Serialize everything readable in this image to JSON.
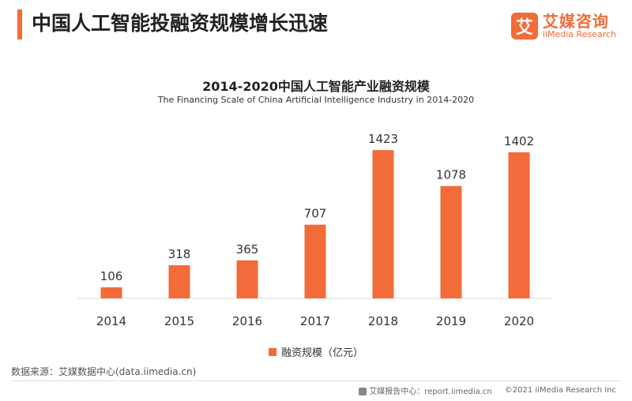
{
  "header": {
    "title": "中国人工智能投融资规模增长迅速",
    "brand_icon_glyph": "艾",
    "brand_name": "艾媒咨询",
    "brand_sub": "iiMedia Research"
  },
  "colors": {
    "accent": "#f26b38",
    "bar": "#f26b38"
  },
  "chart_data": {
    "type": "bar",
    "title": "2014-2020中国人工智能产业融资规模",
    "subtitle": "The Financing Scale of China Artificial Intelligence Industry  in 2014-2020",
    "categories": [
      "2014",
      "2015",
      "2016",
      "2017",
      "2018",
      "2019",
      "2020"
    ],
    "series": [
      {
        "name": "融资规模（亿元）",
        "values": [
          106,
          318,
          365,
          707,
          1423,
          1078,
          1402
        ]
      }
    ],
    "xlabel": "",
    "ylabel": "",
    "ylim": [
      0,
      1500
    ],
    "grid": false,
    "legend": "bottom-center",
    "data_labels": true
  },
  "source": "数据来源：艾媒数据中心(data.iimedia.cn)",
  "footer": {
    "report_text": "艾媒报告中心：report.iimedia.cn",
    "copyright": "©2021  iiMedia Research  Inc"
  }
}
